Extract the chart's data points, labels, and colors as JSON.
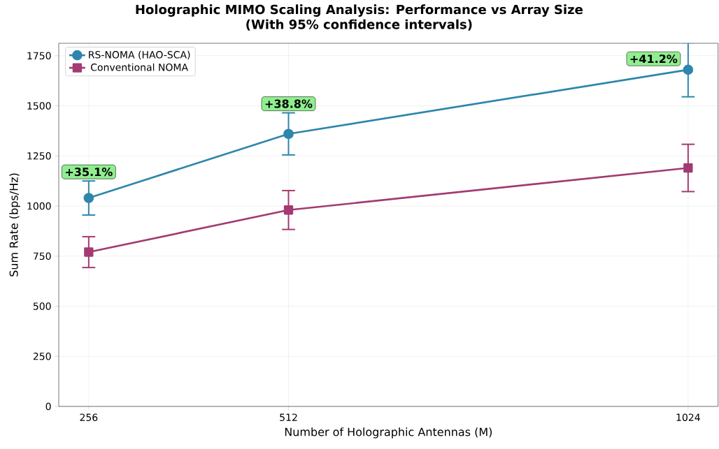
{
  "chart_data": {
    "type": "line",
    "title": "Holographic MIMO Scaling Analysis: Performance vs Array Size",
    "subtitle": "(With 95% confidence intervals)",
    "xlabel": "Number of Holographic Antennas (M)",
    "ylabel": "Sum Rate (bps/Hz)",
    "x": [
      256,
      512,
      1024
    ],
    "series": [
      {
        "name": "RS-NOMA (HAO-SCA)",
        "color": "#2e86ab",
        "marker": "circle",
        "values": [
          1040,
          1360,
          1680
        ],
        "errors": [
          85,
          105,
          135
        ]
      },
      {
        "name": "Conventional NOMA",
        "color": "#a23b72",
        "marker": "square",
        "values": [
          770,
          980,
          1190
        ],
        "errors": [
          77,
          97,
          118
        ]
      }
    ],
    "annotations": [
      {
        "text": "+35.1%",
        "x": 256,
        "y": 1040
      },
      {
        "text": "+38.8%",
        "x": 512,
        "y": 1360
      },
      {
        "text": "+41.2%",
        "x": 1024,
        "y": 1680
      }
    ],
    "xlim": [
      217.6,
      1062.4
    ],
    "ylim": [
      0,
      1812
    ],
    "xticks": [
      256,
      512,
      1024
    ],
    "yticks": [
      0,
      250,
      500,
      750,
      1000,
      1250,
      1500,
      1750
    ],
    "grid": true,
    "legend": "top left",
    "line_style": "solid"
  }
}
